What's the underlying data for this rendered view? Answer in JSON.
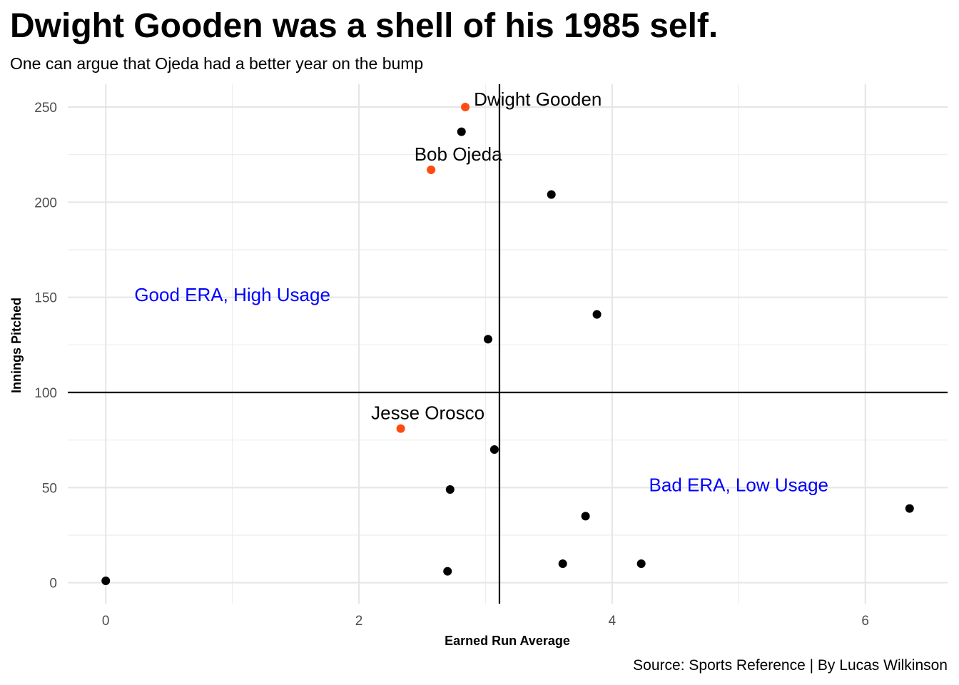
{
  "header": {
    "title": "Dwight Gooden was a shell of his 1985 self.",
    "subtitle": "One can argue that Ojeda had a better year on the bump"
  },
  "caption": "Source: Sports Reference | By Lucas Wilkinson",
  "colors": {
    "highlight": "#ff4a12",
    "point": "#000000",
    "quadrant_text": "#0000ff",
    "grid": "#e5e5e5",
    "tick_text": "#4d4d4d"
  },
  "chart_data": {
    "type": "scatter",
    "title": "Dwight Gooden was a shell of his 1985 self.",
    "subtitle": "One can argue that Ojeda had a better year on the bump",
    "xlabel": "Earned Run Average",
    "ylabel": "Innings Pitched",
    "xlim": [
      -0.3,
      6.65
    ],
    "ylim": [
      -11,
      262
    ],
    "x_ticks": [
      0,
      2,
      4,
      6
    ],
    "y_ticks": [
      0,
      50,
      100,
      150,
      200,
      250
    ],
    "grid": true,
    "reference_lines": {
      "vertical_x": 3.11,
      "horizontal_y": 100
    },
    "points": [
      {
        "x": 2.84,
        "y": 250,
        "highlight": true,
        "label": "Dwight Gooden"
      },
      {
        "x": 2.57,
        "y": 217,
        "highlight": true,
        "label": "Bob Ojeda"
      },
      {
        "x": 2.33,
        "y": 81,
        "highlight": true,
        "label": "Jesse Orosco"
      },
      {
        "x": 2.81,
        "y": 237,
        "highlight": false
      },
      {
        "x": 3.52,
        "y": 204,
        "highlight": false
      },
      {
        "x": 3.88,
        "y": 141,
        "highlight": false
      },
      {
        "x": 3.02,
        "y": 128,
        "highlight": false
      },
      {
        "x": 3.07,
        "y": 70,
        "highlight": false
      },
      {
        "x": 2.72,
        "y": 49,
        "highlight": false
      },
      {
        "x": 3.79,
        "y": 35,
        "highlight": false
      },
      {
        "x": 6.35,
        "y": 39,
        "highlight": false
      },
      {
        "x": 3.61,
        "y": 10,
        "highlight": false
      },
      {
        "x": 4.23,
        "y": 10,
        "highlight": false
      },
      {
        "x": 2.7,
        "y": 6,
        "highlight": false
      },
      {
        "x": 0.0,
        "y": 1,
        "highlight": false
      }
    ],
    "annotations": [
      {
        "text": "Good ERA, High Usage",
        "x": 1.0,
        "y": 148
      },
      {
        "text": "Bad ERA, Low Usage",
        "x": 5.0,
        "y": 48
      }
    ]
  }
}
